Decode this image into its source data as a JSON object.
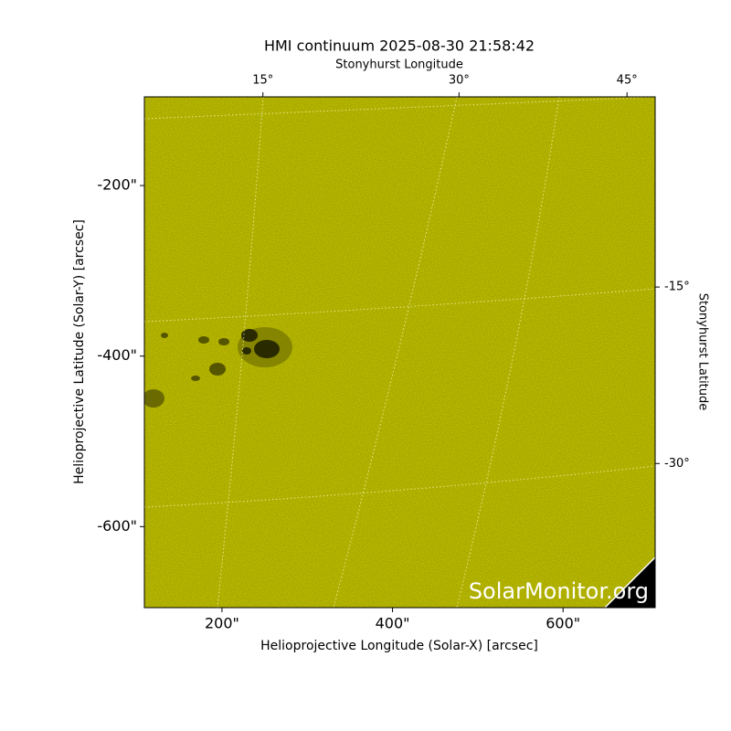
{
  "chart_data": {
    "type": "image",
    "title": "HMI continuum 2025-08-30 21:58:42",
    "xlabel": "Helioprojective Longitude (Solar-X) [arcsec]",
    "ylabel": "Helioprojective Latitude (Solar-Y) [arcsec]",
    "top_axis_label": "Stonyhurst Longitude",
    "right_axis_label": "Stonyhurst Latitude",
    "watermark": "SolarMonitor.org",
    "color": "#cccc00",
    "xlim": [
      109,
      708
    ],
    "ylim": [
      -695,
      -96
    ],
    "xticks": [
      {
        "value": 200,
        "label": "200\""
      },
      {
        "value": 400,
        "label": "400\""
      },
      {
        "value": 600,
        "label": "600\""
      }
    ],
    "yticks": [
      {
        "value": -200,
        "label": "-200\""
      },
      {
        "value": -400,
        "label": "-400\""
      },
      {
        "value": -600,
        "label": "-600\""
      }
    ],
    "top_ticks": [
      {
        "value": 15,
        "label": "15°",
        "x": 248
      },
      {
        "value": 30,
        "label": "30°",
        "x": 478
      },
      {
        "value": 45,
        "label": "45°",
        "x": 675
      }
    ],
    "right_ticks": [
      {
        "value": -15,
        "label": "-15°",
        "y": -319
      },
      {
        "value": -30,
        "label": "-30°",
        "y": -526
      }
    ]
  }
}
